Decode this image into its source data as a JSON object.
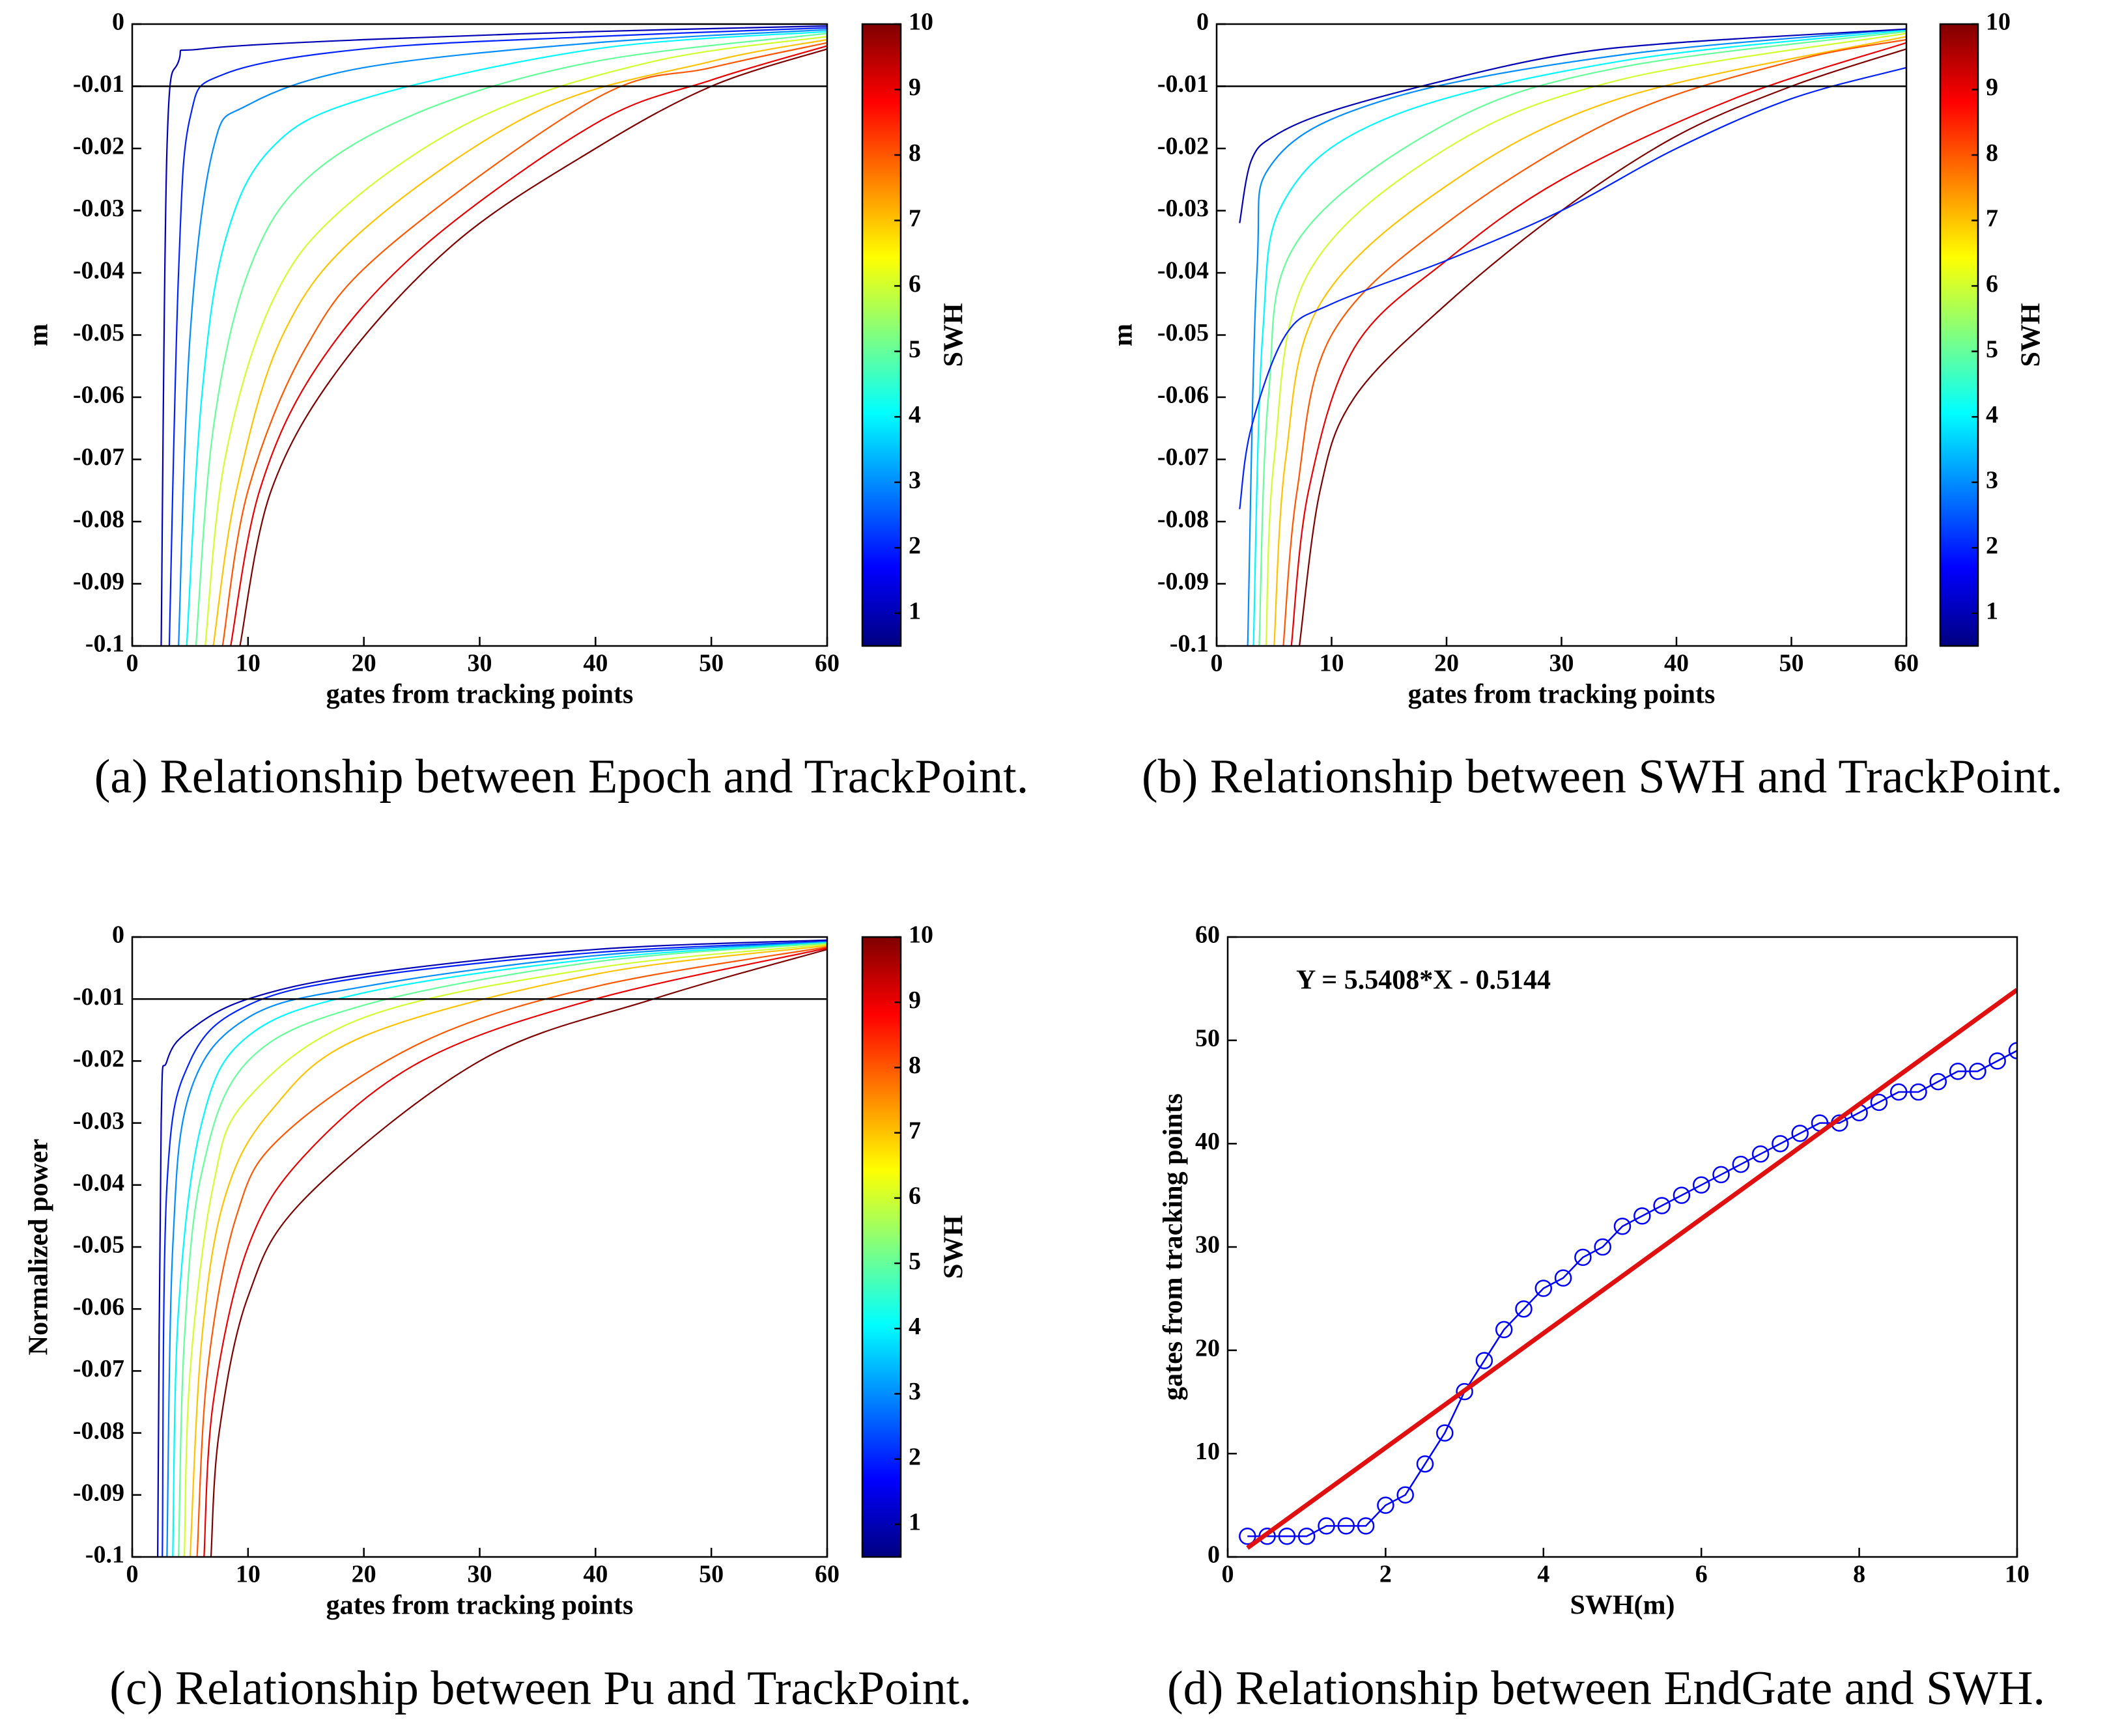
{
  "chart_data": [
    {
      "type": "line",
      "caption": "(a) Relationship between Epoch and TrackPoint.",
      "xlabel": "gates from tracking points",
      "ylabel": "m",
      "xlim": [
        0,
        60
      ],
      "ylim": [
        -0.1,
        0
      ],
      "xticks": [
        0,
        10,
        20,
        30,
        40,
        50,
        60
      ],
      "yticks": [
        0,
        -0.01,
        -0.02,
        -0.03,
        -0.04,
        -0.05,
        -0.06,
        -0.07,
        -0.08,
        -0.09,
        -0.1
      ],
      "reference_line": -0.01,
      "colorbar": {
        "label": "SWH",
        "lim": [
          0.5,
          10
        ],
        "ticks": [
          1,
          2,
          3,
          4,
          5,
          6,
          7,
          8,
          9,
          10
        ],
        "colors": [
          "#000080",
          "#0000ff",
          "#0080ff",
          "#00ffff",
          "#80ff80",
          "#ffff00",
          "#ff8000",
          "#ff0000",
          "#800000"
        ]
      },
      "series": [
        {
          "color": "#0000b5",
          "x": [
            2.5,
            3,
            4,
            6,
            20,
            40,
            60
          ],
          "values": [
            -0.1,
            -0.02,
            -0.006,
            -0.004,
            -0.0025,
            -0.0012,
            -0.0003
          ]
        },
        {
          "color": "#0022ff",
          "x": [
            3.2,
            4,
            5,
            8,
            20,
            40,
            60
          ],
          "values": [
            -0.1,
            -0.04,
            -0.015,
            -0.008,
            -0.004,
            -0.002,
            -0.0006
          ]
        },
        {
          "color": "#008dff",
          "x": [
            4,
            5,
            7,
            10,
            20,
            40,
            60
          ],
          "values": [
            -0.1,
            -0.05,
            -0.02,
            -0.013,
            -0.007,
            -0.003,
            -0.0009
          ]
        },
        {
          "color": "#00f8ff",
          "x": [
            4.7,
            6,
            8,
            12,
            20,
            40,
            60
          ],
          "values": [
            -0.1,
            -0.06,
            -0.035,
            -0.02,
            -0.012,
            -0.004,
            -0.0012
          ]
        },
        {
          "color": "#65ff9a",
          "x": [
            5.5,
            7,
            10,
            15,
            25,
            40,
            60
          ],
          "values": [
            -0.1,
            -0.065,
            -0.04,
            -0.025,
            -0.014,
            -0.006,
            -0.0015
          ]
        },
        {
          "color": "#d0ff2f",
          "x": [
            6.3,
            8,
            12,
            18,
            30,
            45,
            60
          ],
          "values": [
            -0.1,
            -0.07,
            -0.045,
            -0.03,
            -0.015,
            -0.006,
            -0.002
          ]
        },
        {
          "color": "#ffc200",
          "x": [
            7,
            9,
            13,
            20,
            35,
            50,
            60
          ],
          "values": [
            -0.1,
            -0.075,
            -0.05,
            -0.033,
            -0.014,
            -0.006,
            -0.0025
          ]
        },
        {
          "color": "#ff5700",
          "x": [
            7.8,
            10,
            15,
            22,
            40,
            50,
            60
          ],
          "values": [
            -0.1,
            -0.075,
            -0.052,
            -0.036,
            -0.012,
            -0.007,
            -0.003
          ]
        },
        {
          "color": "#eb0000",
          "x": [
            8.5,
            11,
            16,
            25,
            40,
            50,
            60
          ],
          "values": [
            -0.1,
            -0.075,
            -0.055,
            -0.036,
            -0.016,
            -0.009,
            -0.0035
          ]
        },
        {
          "color": "#800000",
          "x": [
            9.3,
            12,
            18,
            28,
            40,
            50,
            60
          ],
          "values": [
            -0.1,
            -0.075,
            -0.055,
            -0.035,
            -0.02,
            -0.01,
            -0.004
          ]
        }
      ]
    },
    {
      "type": "line",
      "caption": "(b) Relationship between SWH and TrackPoint.",
      "xlabel": "gates from tracking points",
      "ylabel": "m",
      "xlim": [
        0,
        60
      ],
      "ylim": [
        -0.1,
        0
      ],
      "xticks": [
        0,
        10,
        20,
        30,
        40,
        50,
        60
      ],
      "yticks": [
        0,
        -0.01,
        -0.02,
        -0.03,
        -0.04,
        -0.05,
        -0.06,
        -0.07,
        -0.08,
        -0.09,
        -0.1
      ],
      "reference_line": -0.01,
      "colorbar": {
        "label": "SWH",
        "lim": [
          0.5,
          10
        ],
        "ticks": [
          1,
          2,
          3,
          4,
          5,
          6,
          7,
          8,
          9,
          10
        ],
        "colors": [
          "#000080",
          "#0000ff",
          "#0080ff",
          "#00ffff",
          "#80ff80",
          "#ffff00",
          "#ff8000",
          "#ff0000",
          "#800000"
        ]
      },
      "series": [
        {
          "color": "#008dff",
          "x": [
            2.7,
            3.5,
            5,
            15,
            35,
            60
          ],
          "values": [
            -0.1,
            -0.04,
            -0.022,
            -0.012,
            -0.005,
            -0.0008
          ]
        },
        {
          "color": "#00f8ff",
          "x": [
            3.2,
            4,
            6,
            15,
            35,
            60
          ],
          "values": [
            -0.1,
            -0.05,
            -0.028,
            -0.015,
            -0.006,
            -0.001
          ]
        },
        {
          "color": "#65ff9a",
          "x": [
            3.7,
            4.5,
            7,
            20,
            35,
            60
          ],
          "values": [
            -0.1,
            -0.06,
            -0.035,
            -0.016,
            -0.007,
            -0.0012
          ]
        },
        {
          "color": "#d0ff2f",
          "x": [
            4.3,
            5,
            8,
            20,
            35,
            60
          ],
          "values": [
            -0.1,
            -0.07,
            -0.04,
            -0.02,
            -0.009,
            -0.0015
          ]
        },
        {
          "color": "#ffc200",
          "x": [
            5,
            6,
            9,
            20,
            35,
            60
          ],
          "values": [
            -0.1,
            -0.07,
            -0.045,
            -0.026,
            -0.012,
            -0.002
          ]
        },
        {
          "color": "#ff5700",
          "x": [
            5.8,
            7,
            10,
            20,
            35,
            50,
            60
          ],
          "values": [
            -0.1,
            -0.075,
            -0.05,
            -0.032,
            -0.015,
            -0.006,
            -0.0025
          ]
        },
        {
          "color": "#eb0000",
          "x": [
            6.5,
            8,
            12,
            20,
            30,
            45,
            60
          ],
          "values": [
            -0.1,
            -0.075,
            -0.052,
            -0.038,
            -0.025,
            -0.012,
            -0.003
          ]
        },
        {
          "color": "#800000",
          "x": [
            7.2,
            9,
            12,
            20,
            30,
            40,
            50,
            60
          ],
          "values": [
            -0.1,
            -0.075,
            -0.06,
            -0.045,
            -0.03,
            -0.018,
            -0.01,
            -0.004
          ]
        },
        {
          "color": "#0022ff",
          "x": [
            2,
            3,
            6,
            10,
            20,
            30,
            40,
            50,
            60
          ],
          "values": [
            -0.078,
            -0.065,
            -0.05,
            -0.045,
            -0.038,
            -0.03,
            -0.02,
            -0.012,
            -0.007
          ]
        },
        {
          "color": "#0000b5",
          "x": [
            2,
            3,
            5,
            10,
            20,
            30,
            40,
            60
          ],
          "values": [
            -0.032,
            -0.022,
            -0.018,
            -0.014,
            -0.009,
            -0.005,
            -0.003,
            -0.0008
          ]
        }
      ]
    },
    {
      "type": "line",
      "caption": "(c) Relationship between Pu and TrackPoint.",
      "xlabel": "gates from tracking points",
      "ylabel": "Normalized power",
      "xlim": [
        0,
        60
      ],
      "ylim": [
        -0.1,
        0
      ],
      "xticks": [
        0,
        10,
        20,
        30,
        40,
        50,
        60
      ],
      "yticks": [
        0,
        -0.01,
        -0.02,
        -0.03,
        -0.04,
        -0.05,
        -0.06,
        -0.07,
        -0.08,
        -0.09,
        -0.1
      ],
      "reference_line": -0.01,
      "colorbar": {
        "label": "SWH",
        "lim": [
          0.5,
          10
        ],
        "ticks": [
          1,
          2,
          3,
          4,
          5,
          6,
          7,
          8,
          9,
          10
        ],
        "colors": [
          "#000080",
          "#0000ff",
          "#0080ff",
          "#00ffff",
          "#80ff80",
          "#ffff00",
          "#ff8000",
          "#ff0000",
          "#800000"
        ]
      },
      "series": [
        {
          "color": "#0000b5",
          "x": [
            2.2,
            2.5,
            3,
            5,
            10,
            20,
            40,
            60
          ],
          "values": [
            -0.1,
            -0.03,
            -0.02,
            -0.015,
            -0.01,
            -0.006,
            -0.002,
            -0.0005
          ]
        },
        {
          "color": "#0022ff",
          "x": [
            2.6,
            3,
            5,
            10,
            20,
            40,
            60
          ],
          "values": [
            -0.1,
            -0.04,
            -0.02,
            -0.011,
            -0.0065,
            -0.0025,
            -0.0007
          ]
        },
        {
          "color": "#008dff",
          "x": [
            3,
            3.5,
            5,
            10,
            20,
            40,
            60
          ],
          "values": [
            -0.1,
            -0.05,
            -0.025,
            -0.013,
            -0.008,
            -0.003,
            -0.0008
          ]
        },
        {
          "color": "#00f8ff",
          "x": [
            3.5,
            4,
            6,
            10,
            20,
            40,
            60
          ],
          "values": [
            -0.1,
            -0.06,
            -0.03,
            -0.016,
            -0.009,
            -0.0035,
            -0.0009
          ]
        },
        {
          "color": "#65ff9a",
          "x": [
            4,
            4.5,
            6,
            10,
            20,
            40,
            60
          ],
          "values": [
            -0.1,
            -0.065,
            -0.038,
            -0.02,
            -0.011,
            -0.004,
            -0.001
          ]
        },
        {
          "color": "#d0ff2f",
          "x": [
            4.5,
            5,
            7,
            10,
            20,
            40,
            60
          ],
          "values": [
            -0.1,
            -0.07,
            -0.04,
            -0.026,
            -0.013,
            -0.005,
            -0.0012
          ]
        },
        {
          "color": "#ffc200",
          "x": [
            5,
            6,
            8,
            12,
            20,
            40,
            60
          ],
          "values": [
            -0.1,
            -0.065,
            -0.042,
            -0.028,
            -0.016,
            -0.006,
            -0.0014
          ]
        },
        {
          "color": "#ff5700",
          "x": [
            5.6,
            6.5,
            9,
            13,
            25,
            40,
            60
          ],
          "values": [
            -0.1,
            -0.07,
            -0.045,
            -0.032,
            -0.017,
            -0.008,
            -0.0016
          ]
        },
        {
          "color": "#eb0000",
          "x": [
            6.2,
            7,
            10,
            15,
            25,
            40,
            60
          ],
          "values": [
            -0.1,
            -0.075,
            -0.05,
            -0.035,
            -0.02,
            -0.01,
            -0.0018
          ]
        },
        {
          "color": "#800000",
          "x": [
            6.8,
            7.5,
            10,
            15,
            30,
            45,
            60
          ],
          "values": [
            -0.1,
            -0.08,
            -0.058,
            -0.042,
            -0.02,
            -0.01,
            -0.002
          ]
        }
      ]
    },
    {
      "type": "line",
      "caption": "(d) Relationship between EndGate and SWH.",
      "xlabel": "SWH(m)",
      "ylabel": "gates from tracking points",
      "annotation": "Y = 5.5408*X - 0.5144",
      "xlim": [
        0,
        10
      ],
      "ylim": [
        0,
        60
      ],
      "xticks": [
        0,
        2,
        4,
        6,
        8,
        10
      ],
      "yticks": [
        0,
        10,
        20,
        30,
        40,
        50,
        60
      ],
      "series": [
        {
          "color": "#0000ff",
          "marker": "circle",
          "x": [
            0.25,
            0.5,
            0.75,
            1,
            1.25,
            1.5,
            1.75,
            2,
            2.25,
            2.5,
            2.75,
            3,
            3.25,
            3.5,
            3.75,
            4,
            4.25,
            4.5,
            4.75,
            5,
            5.25,
            5.5,
            5.75,
            6,
            6.25,
            6.5,
            6.75,
            7,
            7.25,
            7.5,
            7.75,
            8,
            8.25,
            8.5,
            8.75,
            9,
            9.25,
            9.5,
            9.75,
            10
          ],
          "values": [
            2,
            2,
            2,
            2,
            3,
            3,
            3,
            5,
            6,
            9,
            12,
            16,
            19,
            22,
            24,
            26,
            27,
            29,
            30,
            32,
            33,
            34,
            35,
            36,
            37,
            38,
            39,
            40,
            41,
            42,
            42,
            43,
            44,
            45,
            45,
            46,
            47,
            47,
            48,
            49
          ]
        },
        {
          "color": "#e01010",
          "x": [
            0.25,
            10
          ],
          "values": [
            0.8708,
            54.8936
          ]
        }
      ]
    }
  ]
}
